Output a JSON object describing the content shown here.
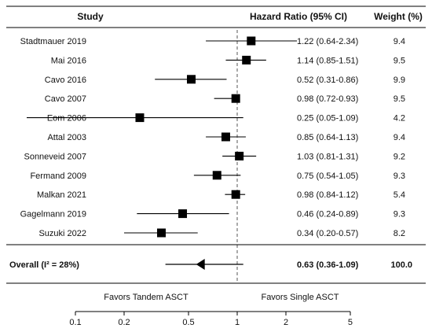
{
  "chart_data": {
    "type": "forest",
    "headers": {
      "study": "Study",
      "hr": "Hazard Ratio (95% CI)",
      "weight": "Weight (%)"
    },
    "studies": [
      {
        "name": "Stadtmauer 2019",
        "hr": 1.22,
        "lo": 0.64,
        "hi": 2.34,
        "ci_text": "1.22 (0.64-2.34)",
        "weight": "9.4"
      },
      {
        "name": "Mai 2016",
        "hr": 1.14,
        "lo": 0.85,
        "hi": 1.51,
        "ci_text": "1.14 (0.85-1.51)",
        "weight": "9.5"
      },
      {
        "name": "Cavo 2016",
        "hr": 0.52,
        "lo": 0.31,
        "hi": 0.86,
        "ci_text": "0.52 (0.31-0.86)",
        "weight": "9.9"
      },
      {
        "name": "Cavo 2007",
        "hr": 0.98,
        "lo": 0.72,
        "hi": 0.93,
        "ci_text": "0.98 (0.72-0.93)",
        "weight": "9.5"
      },
      {
        "name": "Eom 2006",
        "hr": 0.25,
        "lo": 0.05,
        "hi": 1.09,
        "ci_text": "0.25 (0.05-1.09)",
        "weight": "4.2"
      },
      {
        "name": "Attal 2003",
        "hr": 0.85,
        "lo": 0.64,
        "hi": 1.13,
        "ci_text": "0.85 (0.64-1.13)",
        "weight": "9.4"
      },
      {
        "name": "Sonneveid 2007",
        "hr": 1.03,
        "lo": 0.81,
        "hi": 1.31,
        "ci_text": "1.03 (0.81-1.31)",
        "weight": "9.2"
      },
      {
        "name": "Fermand 2009",
        "hr": 0.75,
        "lo": 0.54,
        "hi": 1.05,
        "ci_text": "0.75 (0.54-1.05)",
        "weight": "9.3"
      },
      {
        "name": "Malkan 2021",
        "hr": 0.98,
        "lo": 0.84,
        "hi": 1.12,
        "ci_text": "0.98 (0.84-1.12)",
        "weight": "5.4"
      },
      {
        "name": "Gagelmann 2019",
        "hr": 0.46,
        "lo": 0.24,
        "hi": 0.89,
        "ci_text": "0.46 (0.24-0.89)",
        "weight": "9.3"
      },
      {
        "name": "Suzuki 2022",
        "hr": 0.34,
        "lo": 0.2,
        "hi": 0.57,
        "ci_text": "0.34 (0.20-0.57)",
        "weight": "8.2"
      }
    ],
    "overall": {
      "label": "Overall (I² = 28%)",
      "hr": 0.63,
      "lo": 0.36,
      "hi": 1.09,
      "ci_text": "0.63 (0.36-1.09)",
      "weight": "100.0"
    },
    "favors_left": "Favors Tandem ASCT",
    "favors_right": "Favors Single ASCT",
    "x_scale": "log",
    "xlim": [
      0.1,
      5
    ],
    "x_ticks": [
      0.1,
      0.2,
      0.5,
      1,
      2,
      5
    ],
    "x_tick_labels": [
      "0.1",
      "0.2",
      "0.5",
      "1",
      "2",
      "5"
    ],
    "reference_line": 1,
    "colors": {
      "marker": "#000000",
      "line": "#000000",
      "reference": "#555555"
    }
  }
}
